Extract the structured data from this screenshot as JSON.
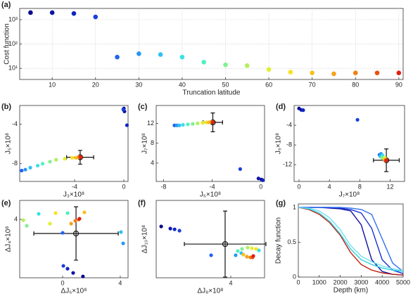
{
  "chart_data": [
    {
      "type": "scatter",
      "panel": "(a)",
      "x_label": "Truncation latitude",
      "y_label": "Cost function",
      "x": [
        5,
        10,
        15,
        20,
        25,
        30,
        35,
        40,
        45,
        50,
        55,
        60,
        65,
        70,
        75,
        80,
        85,
        90
      ],
      "values": [
        1950,
        1950,
        1800,
        1300,
        29,
        40,
        37,
        29,
        18,
        14,
        13,
        9,
        7,
        6.5,
        6,
        6.5,
        6.5,
        6.5
      ],
      "colors": [
        "#0a0a8c",
        "#0c14a8",
        "#1024c4",
        "#1a40dc",
        "#1e64f0",
        "#2896f5",
        "#30c0f5",
        "#38e0e8",
        "#50f0c0",
        "#80f090",
        "#b0f060",
        "#e0f030",
        "#f8e020",
        "#f8c020",
        "#f8a018",
        "#f08010",
        "#e85010",
        "#e02010"
      ],
      "xlim": [
        2.5,
        91
      ],
      "ylim": [
        3.5,
        2900
      ],
      "ylog": true,
      "grid": true,
      "xticks": [
        10,
        20,
        30,
        40,
        50,
        60,
        70,
        80,
        90
      ],
      "yticks": [
        {
          "value": 10,
          "label": "10¹"
        },
        {
          "value": 100,
          "label": "10²"
        },
        {
          "value": 1000,
          "label": "10³"
        }
      ]
    },
    {
      "type": "scatter",
      "panel": "(b)",
      "x_label": "J₃×10⁸",
      "y_label": "J₅×10⁸",
      "x": [
        0,
        0.05,
        0.25,
        -0.05,
        -8.3,
        -8.0,
        -7.6,
        -7.0,
        -6.6,
        -6.0,
        -5.5,
        -4.8,
        -4.2,
        -3.9,
        -3.7,
        -3.6,
        -3.55,
        -3.5
      ],
      "values": [
        -2.4,
        -2.7,
        -4.1,
        -2.5,
        -8.7,
        -8.6,
        -8.4,
        -8.2,
        -8.0,
        -7.8,
        -7.6,
        -7.5,
        -7.4,
        -7.4,
        -7.35,
        -7.3,
        -7.3,
        -7.35
      ],
      "reference": {
        "x": -3.55,
        "y": -7.35,
        "xerr": 1.1,
        "yerr": 0.7
      },
      "xlim": [
        -8.46,
        0.34
      ],
      "ylim": [
        -9.8,
        -2.1
      ],
      "xticks": [
        -4,
        0
      ],
      "yticks": [
        -8,
        -4
      ]
    },
    {
      "type": "scatter",
      "panel": "(c)",
      "x_label": "J₅×10⁸",
      "y_label": "J₇×10⁸",
      "x": [
        0.05,
        -0.2,
        0.15,
        -1.7,
        -7.1,
        -6.9,
        -6.7,
        -6.4,
        -6.0,
        -5.6,
        -5.2,
        -4.8,
        -4.5,
        -4.3,
        -4.1,
        -4.0,
        -3.95,
        -3.95
      ],
      "values": [
        0.7,
        0.9,
        0.55,
        2.8,
        11.6,
        11.6,
        11.6,
        11.7,
        11.8,
        11.9,
        12.0,
        12.1,
        12.2,
        12.2,
        12.3,
        12.3,
        12.3,
        12.2
      ],
      "reference": {
        "x": -3.95,
        "y": 12.2,
        "xerr": 0.8,
        "yerr": 1.9
      },
      "xlim": [
        -8.6,
        0.3
      ],
      "ylim": [
        0.3,
        15.6
      ],
      "xticks": [
        -8,
        -4,
        0
      ],
      "yticks": [
        4,
        8,
        12
      ]
    },
    {
      "type": "scatter",
      "panel": "(d)",
      "x_label": "J₇×10⁸",
      "y_label": "J₉×10⁸",
      "x": [
        0,
        0.3,
        0.55,
        7.7,
        10.6,
        10.8,
        10.7,
        11.0,
        11.1,
        10.9,
        11.2,
        11.3,
        11.4,
        11.3,
        11.4,
        11.5,
        11.4,
        11.5
      ],
      "values": [
        -0.6,
        -0.9,
        -0.95,
        -2.9,
        -10.0,
        -9.8,
        -10.3,
        -10.1,
        -10.5,
        -10.6,
        -10.8,
        -10.6,
        -10.9,
        -11.0,
        -11.1,
        -11.0,
        -11.2,
        -11.1
      ],
      "reference": {
        "x": 11.5,
        "y": -11.1,
        "xerr": 1.7,
        "yerr": 2.3
      },
      "xlim": [
        -0.65,
        13.9
      ],
      "ylim": [
        -15.4,
        0
      ],
      "xticks": [
        0,
        4,
        8,
        12
      ],
      "yticks": [
        -12,
        -8,
        -4
      ]
    },
    {
      "type": "scatter",
      "panel": "(e)",
      "x_label": "ΔJ₆×10⁸",
      "y_label": "ΔJ₄×10⁸",
      "x": [
        1.41,
        0.73,
        0.34,
        0.05,
        0,
        4.2,
        4.05,
        -1.66,
        0.34,
        -2.49,
        -2.73,
        -0.88,
        -0.49,
        1.51,
        0.59,
        0.88,
        1.12,
        1.17
      ],
      "values": [
        -1.4,
        -1.07,
        -0.67,
        -0.4,
        2.73,
        1.73,
        2.8,
        4.53,
        4.6,
        3.4,
        3.93,
        3.6,
        4.6,
        4.67,
        3.6,
        3.87,
        4.0,
        4.07
      ],
      "reference": {
        "x": 0.93,
        "y": 2.67,
        "xerr": 2.93,
        "yerr": 2.53
      },
      "xlim": [
        -2.98,
        4.54
      ],
      "ylim": [
        -1.53,
        5.8
      ],
      "xticks": [
        0,
        4
      ],
      "yticks": [
        4
      ]
    },
    {
      "type": "scatter",
      "panel": "(f)",
      "x_label": "ΔJ₈×10⁸",
      "y_label": "ΔJ₁₀×10⁸",
      "x": [
        -1.56,
        -0.83,
        -0.49,
        -0.1,
        2.43,
        4.39,
        4.84,
        6.25,
        4.56,
        4.9,
        5.35,
        5.69,
        6.02,
        5.01,
        5.29,
        5.57,
        5.74,
        5.8
      ],
      "values": [
        1.2,
        1.0,
        0.93,
        0.8,
        -1.53,
        -1.53,
        -1.33,
        -1.07,
        -1.13,
        -0.93,
        -0.8,
        -0.87,
        -0.93,
        -1.47,
        -1.67,
        -1.73,
        -1.73,
        -1.6
      ],
      "reference": {
        "x": 3.55,
        "y": -0.47,
        "xerr": 3.26,
        "yerr": 3.13
      },
      "xlim": [
        -1.96,
        6.7
      ],
      "ylim": [
        -3.67,
        3.67
      ],
      "xticks": [
        4
      ],
      "yticks": []
    },
    {
      "type": "line",
      "panel": "(g)",
      "x_label": "Depth (km)",
      "y_label": "Decay function",
      "x": [
        0,
        500,
        1000,
        1500,
        2000,
        2500,
        3000,
        3500,
        4000,
        4500,
        5000
      ],
      "series": [
        {
          "color": "#1010a0",
          "values": [
            1,
            1,
            1,
            0.99,
            0.98,
            0.95,
            0.75,
            0.25,
            0.08,
            0.04,
            0.03
          ]
        },
        {
          "color": "#1830d0",
          "values": [
            1,
            1,
            1,
            1,
            0.99,
            0.97,
            0.92,
            0.7,
            0.25,
            0.1,
            0.05
          ]
        },
        {
          "color": "#3070f0",
          "values": [
            1,
            1,
            1,
            1,
            1,
            0.99,
            0.97,
            0.9,
            0.55,
            0.2,
            0.08
          ]
        },
        {
          "color": "#c02010",
          "values": [
            1,
            0.97,
            0.9,
            0.78,
            0.6,
            0.35,
            0.18,
            0.1,
            0.06,
            0.04,
            0.03
          ]
        },
        {
          "color": "#30d0e0",
          "values": [
            1,
            0.98,
            0.92,
            0.8,
            0.62,
            0.4,
            0.25,
            0.18,
            0.13,
            0.1,
            0.08
          ]
        },
        {
          "color": "#70e0f0",
          "values": [
            1,
            0.99,
            0.95,
            0.85,
            0.68,
            0.45,
            0.3,
            0.22,
            0.16,
            0.12,
            0.09
          ]
        }
      ],
      "xlim": [
        0,
        5000
      ],
      "ylim": [
        0,
        1.05
      ],
      "xticks": [
        0,
        1000,
        2000,
        3000,
        4000,
        5000
      ],
      "yticks": [
        0,
        0.5,
        1
      ]
    }
  ]
}
